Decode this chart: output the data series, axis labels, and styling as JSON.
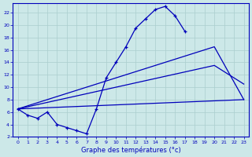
{
  "xlabel": "Graphe des températures (°c)",
  "bg_color": "#cce8e8",
  "grid_color": "#aacece",
  "line_color": "#0000bb",
  "xlim": [
    -0.5,
    23.5
  ],
  "ylim": [
    2,
    23.5
  ],
  "xticks": [
    0,
    1,
    2,
    3,
    4,
    5,
    6,
    7,
    8,
    9,
    10,
    11,
    12,
    13,
    14,
    15,
    16,
    17,
    18,
    19,
    20,
    21,
    22,
    23
  ],
  "yticks": [
    2,
    4,
    6,
    8,
    10,
    12,
    14,
    16,
    18,
    20,
    22
  ],
  "series1_x": [
    0,
    1,
    2,
    3,
    4,
    5,
    6,
    7,
    8,
    9,
    10,
    11,
    12,
    13,
    14,
    15,
    16,
    17
  ],
  "series1_y": [
    6.5,
    5.5,
    5.0,
    6.0,
    4.0,
    3.5,
    3.0,
    2.5,
    6.5,
    11.5,
    14.0,
    16.5,
    19.5,
    21.0,
    22.5,
    23.0,
    21.5,
    19.0
  ],
  "series2_x": [
    0,
    23
  ],
  "series2_y": [
    6.5,
    8.0
  ],
  "series3_x": [
    0,
    20,
    23
  ],
  "series3_y": [
    6.5,
    13.5,
    10.5
  ],
  "series4_x": [
    0,
    20,
    23
  ],
  "series4_y": [
    6.5,
    16.5,
    8.0
  ]
}
